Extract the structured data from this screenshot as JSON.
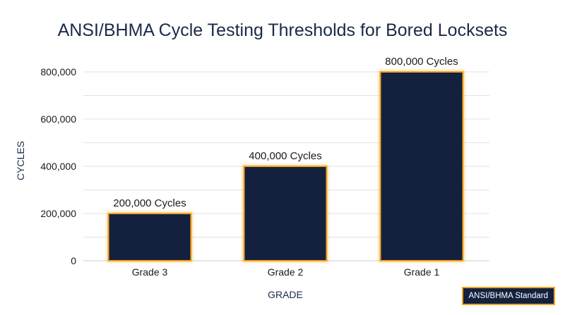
{
  "chart_data": {
    "type": "bar",
    "title": "ANSI/BHMA Cycle Testing Thresholds for Bored Locksets",
    "xlabel": "GRADE",
    "ylabel": "CYCLES",
    "categories": [
      "Grade 3",
      "Grade 2",
      "Grade 1"
    ],
    "values": [
      200000,
      400000,
      800000
    ],
    "data_labels": [
      "200,000 Cycles",
      "400,000 Cycles",
      "800,000 Cycles"
    ],
    "yticks": [
      0,
      200000,
      400000,
      600000,
      800000
    ],
    "ytick_labels": [
      "0",
      "200,000",
      "400,000",
      "600,000",
      "800,000"
    ],
    "ylim": [
      0,
      800000
    ],
    "grid": true,
    "bar_color": "#13213f",
    "bar_outline_color": "#f5a21b",
    "grid_color": "#e3e3e3"
  },
  "badge": {
    "label": "ANSI/BHMA Standard"
  }
}
